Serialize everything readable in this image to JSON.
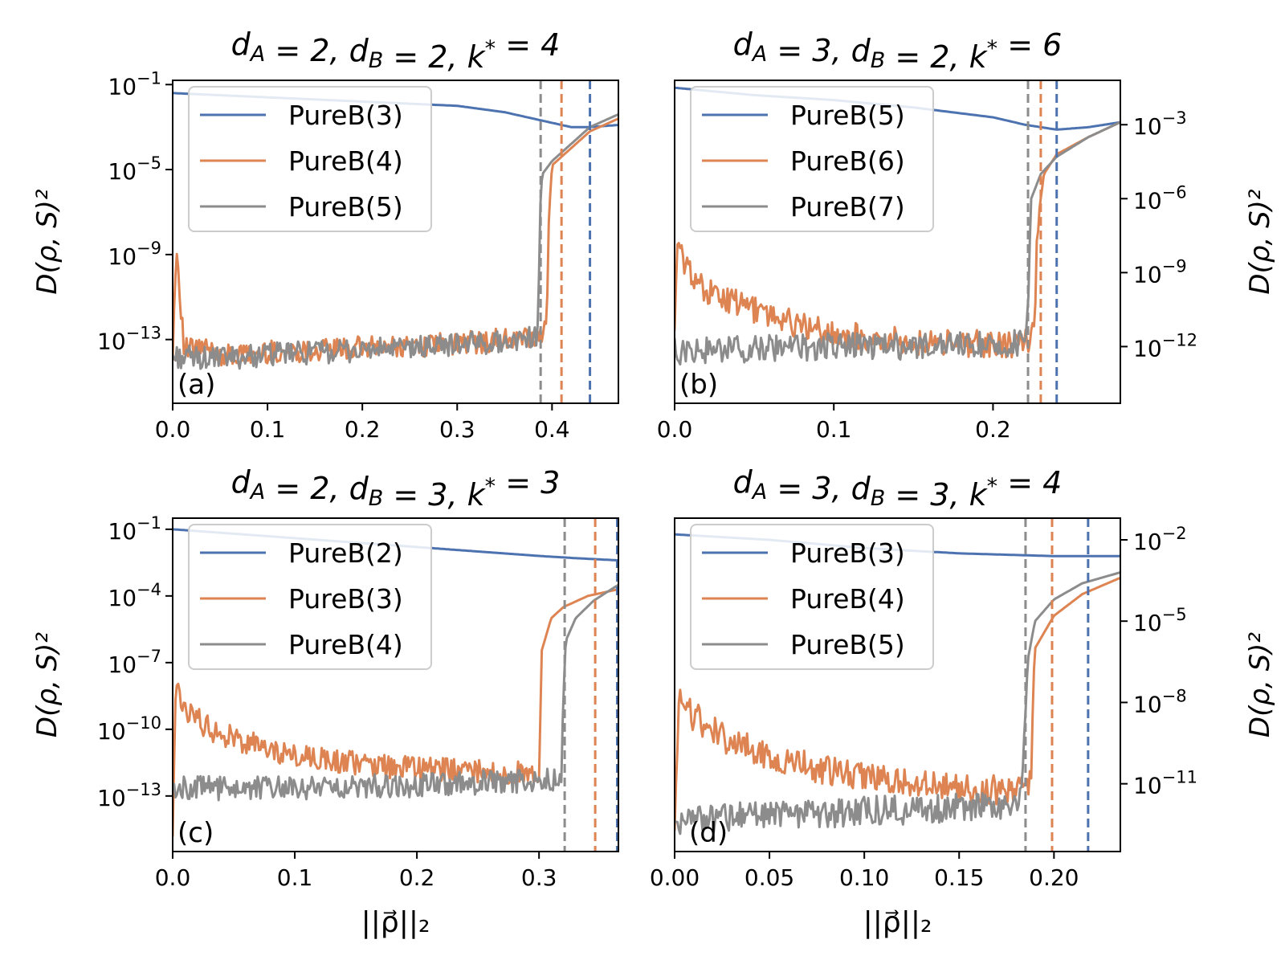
{
  "colors": {
    "blue": "#4c72b0",
    "orange": "#dd8452",
    "gray": "#8c8c8c"
  },
  "xlabel": "||ρ⃗||₂",
  "ylabel": "D(ρ, S)²",
  "chart_data": [
    {
      "panel": "(a)",
      "type": "line",
      "title": "d_A = 2, d_B = 2, k* = 4",
      "yscale": "log",
      "yaxis_side": "left",
      "xlim": [
        0,
        0.47
      ],
      "ylim_exp": [
        -16,
        -0.8
      ],
      "xticks": [
        "0.0",
        "0.1",
        "0.2",
        "0.3",
        "0.4"
      ],
      "xtick_vals": [
        0,
        0.1,
        0.2,
        0.3,
        0.4
      ],
      "yticks": [
        "10^-1",
        "10^-5",
        "10^-9",
        "10^-13"
      ],
      "ytick_exps": [
        -1,
        -5,
        -9,
        -13
      ],
      "vlines": [
        {
          "x": 0.388,
          "color": "gray"
        },
        {
          "x": 0.41,
          "color": "orange"
        },
        {
          "x": 0.44,
          "color": "blue"
        }
      ],
      "series": [
        {
          "name": "PureB(3)",
          "color": "blue",
          "x": [
            0,
            0.05,
            0.1,
            0.15,
            0.2,
            0.25,
            0.3,
            0.35,
            0.4,
            0.42,
            0.44,
            0.47
          ],
          "log10_y": [
            -1.4,
            -1.5,
            -1.6,
            -1.7,
            -1.8,
            -1.9,
            -2.0,
            -2.3,
            -2.8,
            -3.0,
            -3.0,
            -2.9
          ]
        },
        {
          "name": "PureB(4)",
          "color": "orange",
          "x": [
            0,
            0.004,
            0.012,
            0.03,
            0.06,
            0.1,
            0.15,
            0.2,
            0.25,
            0.3,
            0.35,
            0.39,
            0.394,
            0.397,
            0.4,
            0.42,
            0.44,
            0.47
          ],
          "log10_y": [
            -13.5,
            -8.5,
            -13.5,
            -13.4,
            -13.8,
            -13.6,
            -13.5,
            -13.4,
            -13.3,
            -13.2,
            -13.0,
            -12.9,
            -12.5,
            -7.0,
            -4.8,
            -4.0,
            -3.2,
            -2.6
          ]
        },
        {
          "name": "PureB(5)",
          "color": "gray",
          "x": [
            0,
            0.05,
            0.1,
            0.15,
            0.2,
            0.25,
            0.3,
            0.35,
            0.385,
            0.388,
            0.39,
            0.4,
            0.42,
            0.44,
            0.47
          ],
          "log10_y": [
            -13.8,
            -13.9,
            -13.7,
            -13.6,
            -13.5,
            -13.4,
            -13.2,
            -13.1,
            -12.8,
            -6.0,
            -5.2,
            -4.6,
            -3.8,
            -3.0,
            -2.4
          ]
        }
      ]
    },
    {
      "panel": "(b)",
      "type": "line",
      "title": "d_A = 3, d_B = 2, k* = 6",
      "yscale": "log",
      "yaxis_side": "right",
      "xlim": [
        0,
        0.28
      ],
      "ylim_exp": [
        -14.3,
        -1.2
      ],
      "xticks": [
        "0.0",
        "0.1",
        "0.2"
      ],
      "xtick_vals": [
        0,
        0.1,
        0.2
      ],
      "yticks": [
        "10^-3",
        "10^-6",
        "10^-9",
        "10^-12"
      ],
      "ytick_exps": [
        -3,
        -6,
        -9,
        -12
      ],
      "vlines": [
        {
          "x": 0.222,
          "color": "gray"
        },
        {
          "x": 0.23,
          "color": "orange"
        },
        {
          "x": 0.24,
          "color": "blue"
        }
      ],
      "series": [
        {
          "name": "PureB(5)",
          "color": "blue",
          "x": [
            0,
            0.05,
            0.1,
            0.15,
            0.2,
            0.22,
            0.24,
            0.26,
            0.28
          ],
          "log10_y": [
            -1.5,
            -1.8,
            -2.0,
            -2.3,
            -2.7,
            -3.0,
            -3.2,
            -3.1,
            -2.9
          ]
        },
        {
          "name": "PureB(6)",
          "color": "orange",
          "x": [
            0,
            0.002,
            0.005,
            0.02,
            0.05,
            0.08,
            0.1,
            0.15,
            0.2,
            0.22,
            0.226,
            0.228,
            0.232,
            0.24,
            0.26,
            0.28
          ],
          "log10_y": [
            -11.0,
            -7.8,
            -8.5,
            -9.8,
            -10.5,
            -11.2,
            -11.5,
            -11.8,
            -11.9,
            -11.9,
            -11.5,
            -7.0,
            -5.0,
            -4.2,
            -3.5,
            -2.9
          ]
        },
        {
          "name": "PureB(7)",
          "color": "gray",
          "x": [
            0,
            0.05,
            0.1,
            0.15,
            0.2,
            0.22,
            0.222,
            0.224,
            0.23,
            0.24,
            0.26,
            0.28
          ],
          "log10_y": [
            -12.2,
            -12.1,
            -12.0,
            -12.0,
            -11.9,
            -11.8,
            -10.0,
            -6.0,
            -5.0,
            -4.3,
            -3.5,
            -2.9
          ]
        }
      ]
    },
    {
      "panel": "(c)",
      "type": "line",
      "title": "d_A = 2, d_B = 3, k* = 3",
      "yscale": "log",
      "yaxis_side": "left",
      "xlim": [
        0,
        0.365
      ],
      "ylim_exp": [
        -15.5,
        -0.5
      ],
      "xticks": [
        "0.0",
        "0.1",
        "0.2",
        "0.3"
      ],
      "xtick_vals": [
        0,
        0.1,
        0.2,
        0.3
      ],
      "yticks": [
        "10^-1",
        "10^-4",
        "10^-7",
        "10^-10",
        "10^-13"
      ],
      "ytick_exps": [
        -1,
        -4,
        -7,
        -10,
        -13
      ],
      "vlines": [
        {
          "x": 0.321,
          "color": "gray"
        },
        {
          "x": 0.346,
          "color": "orange"
        },
        {
          "x": 0.364,
          "color": "blue"
        }
      ],
      "series": [
        {
          "name": "PureB(2)",
          "color": "blue",
          "x": [
            0,
            0.05,
            0.1,
            0.15,
            0.2,
            0.25,
            0.3,
            0.33,
            0.365
          ],
          "log10_y": [
            -1.0,
            -1.2,
            -1.4,
            -1.6,
            -1.8,
            -2.0,
            -2.2,
            -2.3,
            -2.4
          ]
        },
        {
          "name": "PureB(3)",
          "color": "orange",
          "x": [
            0,
            0.002,
            0.01,
            0.03,
            0.06,
            0.1,
            0.15,
            0.2,
            0.25,
            0.29,
            0.3,
            0.302,
            0.31,
            0.32,
            0.34,
            0.365
          ],
          "log10_y": [
            -15.0,
            -8.2,
            -9.0,
            -10.0,
            -10.6,
            -11.2,
            -11.5,
            -11.8,
            -11.9,
            -12.0,
            -11.9,
            -6.5,
            -5.0,
            -4.5,
            -4.0,
            -3.7
          ]
        },
        {
          "name": "PureB(4)",
          "color": "gray",
          "x": [
            0,
            0.05,
            0.1,
            0.15,
            0.2,
            0.25,
            0.3,
            0.318,
            0.32,
            0.322,
            0.33,
            0.345,
            0.365
          ],
          "log10_y": [
            -12.6,
            -12.7,
            -12.6,
            -12.6,
            -12.5,
            -12.4,
            -12.3,
            -12.2,
            -9.0,
            -6.0,
            -5.0,
            -4.2,
            -3.5
          ]
        }
      ]
    },
    {
      "panel": "(d)",
      "type": "line",
      "title": "d_A = 3, d_B = 3, k* = 4",
      "yscale": "log",
      "yaxis_side": "right",
      "xlim": [
        0,
        0.235
      ],
      "ylim_exp": [
        -13.5,
        -1.2
      ],
      "xticks": [
        "0.00",
        "0.05",
        "0.10",
        "0.15",
        "0.20"
      ],
      "xtick_vals": [
        0,
        0.05,
        0.1,
        0.15,
        0.2
      ],
      "yticks": [
        "10^-2",
        "10^-5",
        "10^-8",
        "10^-11"
      ],
      "ytick_exps": [
        -2,
        -5,
        -8,
        -11
      ],
      "vlines": [
        {
          "x": 0.185,
          "color": "gray"
        },
        {
          "x": 0.199,
          "color": "orange"
        },
        {
          "x": 0.218,
          "color": "blue"
        }
      ],
      "series": [
        {
          "name": "PureB(3)",
          "color": "blue",
          "x": [
            0,
            0.05,
            0.1,
            0.15,
            0.2,
            0.22,
            0.235
          ],
          "log10_y": [
            -1.8,
            -2.0,
            -2.3,
            -2.5,
            -2.6,
            -2.6,
            -2.6
          ]
        },
        {
          "name": "PureB(4)",
          "color": "orange",
          "x": [
            0,
            0.002,
            0.01,
            0.03,
            0.06,
            0.1,
            0.15,
            0.185,
            0.188,
            0.19,
            0.2,
            0.215,
            0.235
          ],
          "log10_y": [
            -12.5,
            -8.0,
            -8.5,
            -9.5,
            -10.2,
            -10.8,
            -11.2,
            -11.2,
            -10.8,
            -6.0,
            -4.8,
            -4.0,
            -3.4
          ]
        },
        {
          "name": "PureB(5)",
          "color": "gray",
          "x": [
            0,
            0.05,
            0.1,
            0.15,
            0.18,
            0.183,
            0.186,
            0.19,
            0.2,
            0.215,
            0.235
          ],
          "log10_y": [
            -12.3,
            -12.2,
            -12.0,
            -11.9,
            -11.8,
            -11.2,
            -6.5,
            -5.0,
            -4.2,
            -3.6,
            -3.2
          ]
        }
      ]
    }
  ]
}
